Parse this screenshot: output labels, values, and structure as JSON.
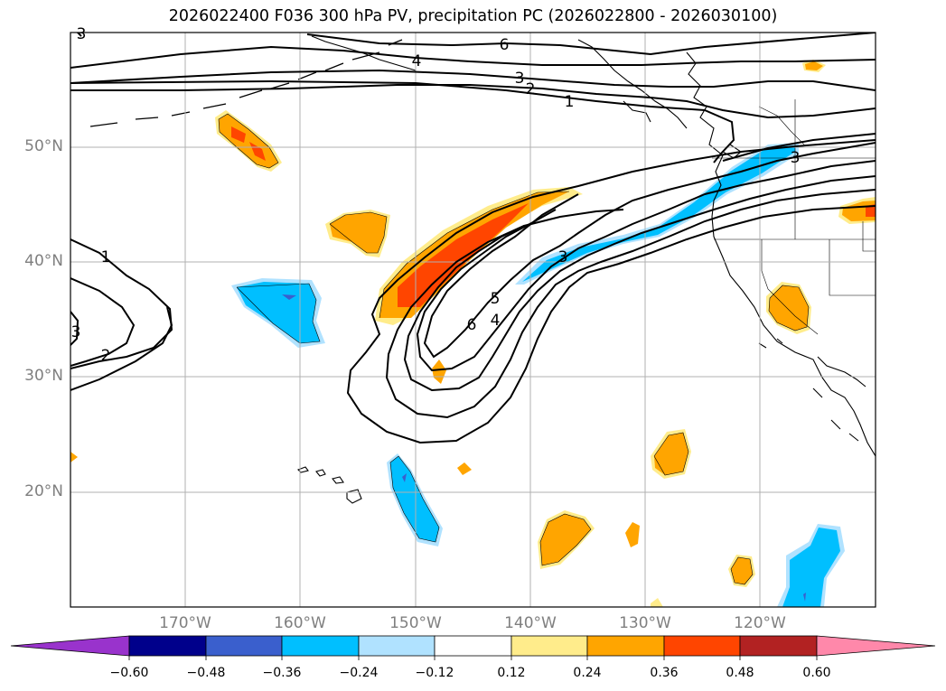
{
  "title": "2026022400 F036 300 hPa PV, precipitation PC (2026022800 - 2026030100)",
  "lat_labels": [
    "50°N",
    "40°N",
    "30°N",
    "20°N"
  ],
  "lon_labels": [
    "170°W",
    "160°W",
    "150°W",
    "140°W",
    "130°W",
    "120°W"
  ],
  "colorbar": {
    "colors": [
      "#9933cc",
      "#00008b",
      "#3a5fcd",
      "#00bfff",
      "#b0e2ff",
      "#ffffff",
      "#ffec8b",
      "#ffa500",
      "#ff4500",
      "#b22222",
      "#ff88aa"
    ],
    "tick_labels": [
      "−0.60",
      "−0.48",
      "−0.36",
      "−0.24",
      "−0.12",
      "0.12",
      "0.24",
      "0.36",
      "0.48",
      "0.60"
    ]
  },
  "pv_contour_labels": [
    "6",
    "4",
    "3",
    "2",
    "1",
    "1",
    "2",
    "3",
    "3",
    "5",
    "4",
    "6",
    "3",
    "3"
  ],
  "colors": {
    "positive": "#ffa500",
    "positive_strong": "#ff4500",
    "negative": "#00bfff",
    "negative_light": "#b0e2ff",
    "grid": "#b0b0b0"
  }
}
